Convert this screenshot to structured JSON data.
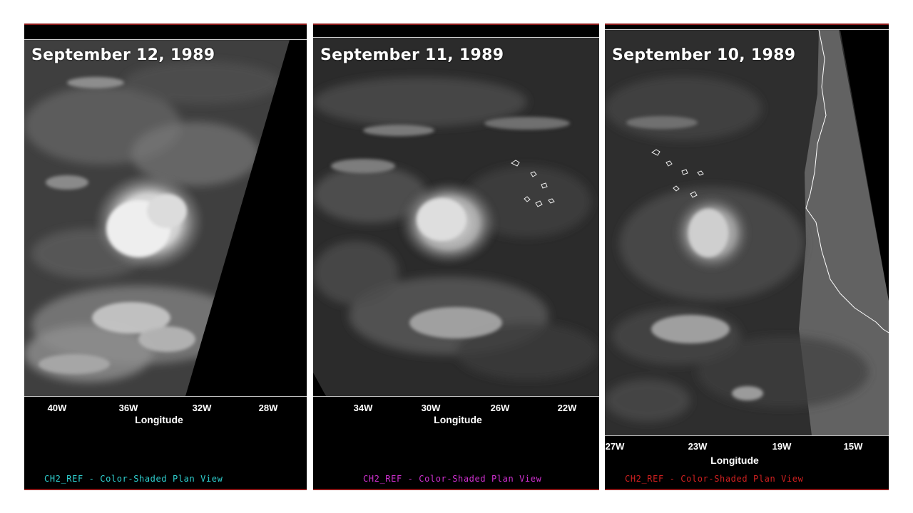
{
  "panels": [
    {
      "date": "September 12, 1989",
      "ticks": [
        "40W",
        "36W",
        "32W",
        "28W"
      ],
      "axis_label": "Longitude",
      "caption": "CH2_REF - Color-Shaded Plan View",
      "caption_color": "#2fd0d0"
    },
    {
      "date": "September 11, 1989",
      "ticks": [
        "34W",
        "30W",
        "26W",
        "22W"
      ],
      "axis_label": "Longitude",
      "caption": "CH2_REF - Color-Shaded Plan View",
      "caption_color": "#d030d0"
    },
    {
      "date": "September 10, 1989",
      "ticks": [
        "27W",
        "23W",
        "19W",
        "15W"
      ],
      "axis_label": "Longitude",
      "caption": "CH2_REF - Color-Shaded Plan View",
      "caption_color": "#d02020"
    }
  ]
}
